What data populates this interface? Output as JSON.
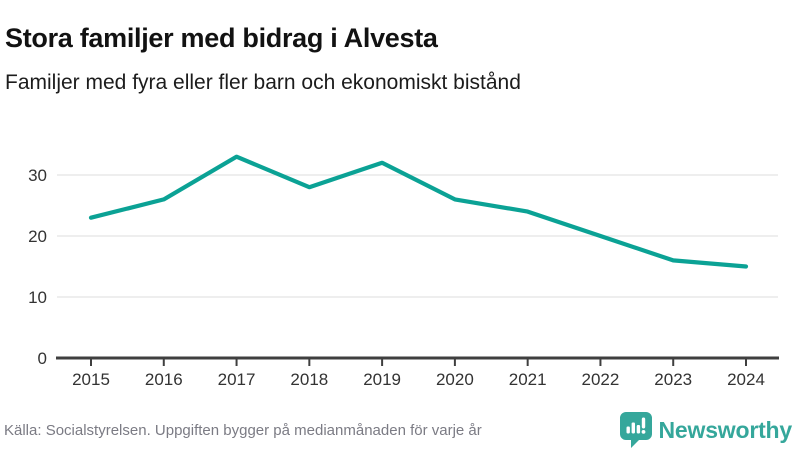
{
  "header": {
    "title": "Stora familjer med bidrag i Alvesta",
    "subtitle": "Familjer med fyra eller fler barn och ekonomiskt bistånd"
  },
  "chart_data": {
    "type": "line",
    "x": [
      2015,
      2016,
      2017,
      2018,
      2019,
      2020,
      2021,
      2022,
      2023,
      2024
    ],
    "series": [
      {
        "name": "Familjer med fyra eller fler barn och ekonomiskt bistånd",
        "values": [
          23,
          26,
          33,
          28,
          32,
          26,
          24,
          20,
          16,
          15
        ]
      }
    ],
    "title": "Stora familjer med bidrag i Alvesta",
    "xlabel": "",
    "ylabel": "",
    "ylim": [
      0,
      35
    ],
    "yticks": [
      0,
      10,
      20,
      30
    ],
    "grid": "horizontal",
    "legend": "none"
  },
  "footer": {
    "source": "Källa: Socialstyrelsen. Uppgiften bygger på medianmånaden för varje år",
    "brand": "Newsworthy"
  },
  "colors": {
    "line": "#0ba295",
    "brand": "#35a79b",
    "grid": "#e4e4e4",
    "axis": "#3f3f3f",
    "tick_text": "#333333",
    "muted_text": "#7b7b84"
  }
}
